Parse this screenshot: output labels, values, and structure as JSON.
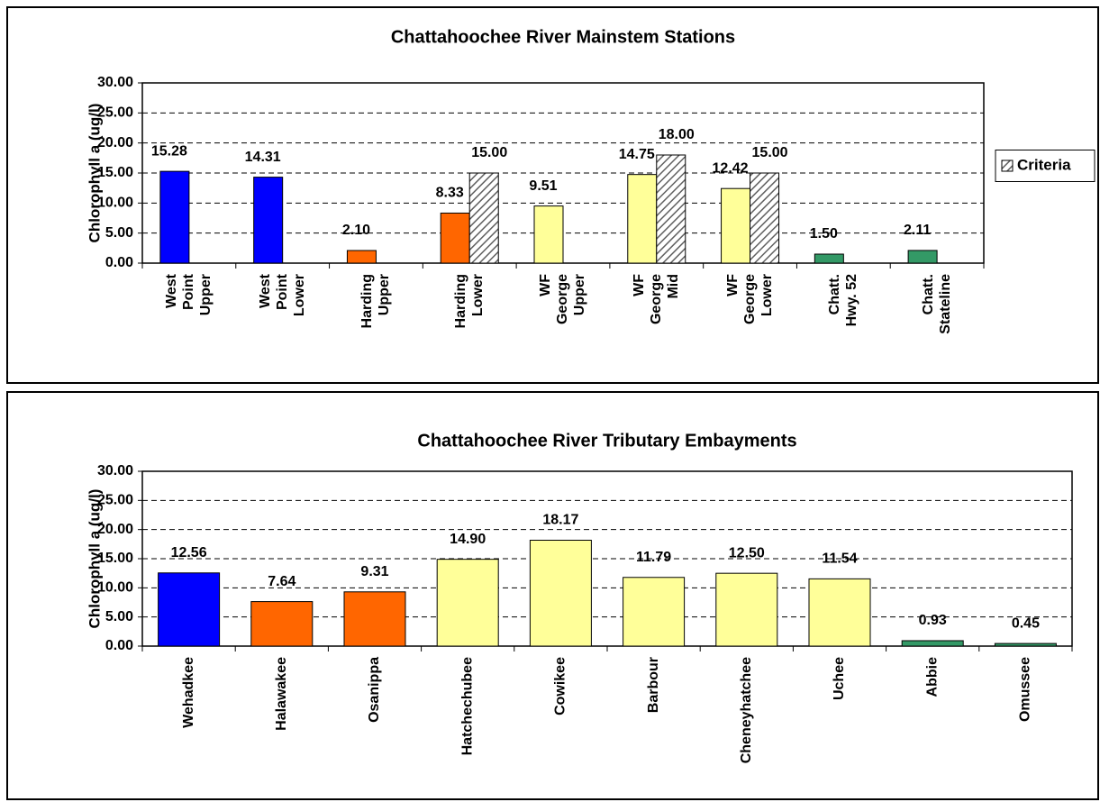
{
  "chart_data": [
    {
      "type": "bar",
      "title": "Chattahoochee River Mainstem Stations",
      "ylabel": "Chlorophyll a (ug/l)",
      "categories": [
        [
          "West",
          "Point",
          "Upper"
        ],
        [
          "West",
          "Point",
          "Lower"
        ],
        [
          "Harding",
          "Upper"
        ],
        [
          "Harding",
          "Lower"
        ],
        [
          "WF",
          "George",
          "Upper"
        ],
        [
          "WF",
          "George",
          "Mid"
        ],
        [
          "WF",
          "George",
          "Lower"
        ],
        [
          "Chatt.",
          "Hwy. 52"
        ],
        [
          "Chatt.",
          "Stateline"
        ]
      ],
      "series": [
        {
          "colors": [
            "#0000ff",
            "#0000ff",
            "#ff6600",
            "#ff6600",
            "#ffff99",
            "#ffff99",
            "#ffff99",
            "#339966",
            "#339966"
          ],
          "values": [
            15.28,
            14.31,
            2.1,
            8.33,
            9.51,
            14.75,
            12.42,
            1.5,
            2.11
          ],
          "value_labels": [
            "15.28",
            "14.31",
            "2.10",
            "8.33",
            "9.51",
            "14.75",
            "12.42",
            "1.50",
            "2.11"
          ]
        },
        {
          "name": "Criteria",
          "color": "#808080",
          "hatch": true,
          "values": [
            null,
            null,
            null,
            15,
            null,
            18,
            15,
            null,
            null
          ],
          "value_labels": [
            null,
            null,
            null,
            "15.00",
            null,
            "18.00",
            "15.00",
            null,
            null
          ]
        }
      ],
      "ylim": [
        0,
        30
      ],
      "yticks": [
        {
          "value": 0,
          "label": "0.00"
        },
        {
          "value": 5,
          "label": "5.00"
        },
        {
          "value": 10,
          "label": "10.00"
        },
        {
          "value": 15,
          "label": "15.00"
        },
        {
          "value": 20,
          "label": "20.00"
        },
        {
          "value": 25,
          "label": "25.00"
        },
        {
          "value": 30,
          "label": "30.00"
        }
      ],
      "grid": true,
      "legend": "right"
    },
    {
      "type": "bar",
      "title": "Chattahoochee River Tributary Embayments",
      "ylabel": "Chlorophyll a (ug/l)",
      "categories": [
        "Wehadkee",
        "Halawakee",
        "Osanippa",
        "Hatchechubee",
        "Cowikee",
        "Barbour",
        "Cheneyhatchee",
        "Uchee",
        "Abbie",
        "Omussee"
      ],
      "series": [
        {
          "colors": [
            "#0000ff",
            "#ff6600",
            "#ff6600",
            "#ffff99",
            "#ffff99",
            "#ffff99",
            "#ffff99",
            "#ffff99",
            "#339966",
            "#339966"
          ],
          "values": [
            12.56,
            7.64,
            9.31,
            14.9,
            18.17,
            11.79,
            12.5,
            11.54,
            0.93,
            0.45
          ],
          "value_labels": [
            "12.56",
            "7.64",
            "9.31",
            "14.90",
            "18.17",
            "11.79",
            "12.50",
            "11.54",
            "0.93",
            "0.45"
          ]
        }
      ],
      "ylim": [
        0,
        30
      ],
      "yticks": [
        {
          "value": 0,
          "label": "0.00"
        },
        {
          "value": 5,
          "label": "5.00"
        },
        {
          "value": 10,
          "label": "10.00"
        },
        {
          "value": 15,
          "label": "15.00"
        },
        {
          "value": 20,
          "label": "20.00"
        },
        {
          "value": 25,
          "label": "25.00"
        },
        {
          "value": 30,
          "label": "30.00"
        }
      ],
      "grid": true
    }
  ]
}
